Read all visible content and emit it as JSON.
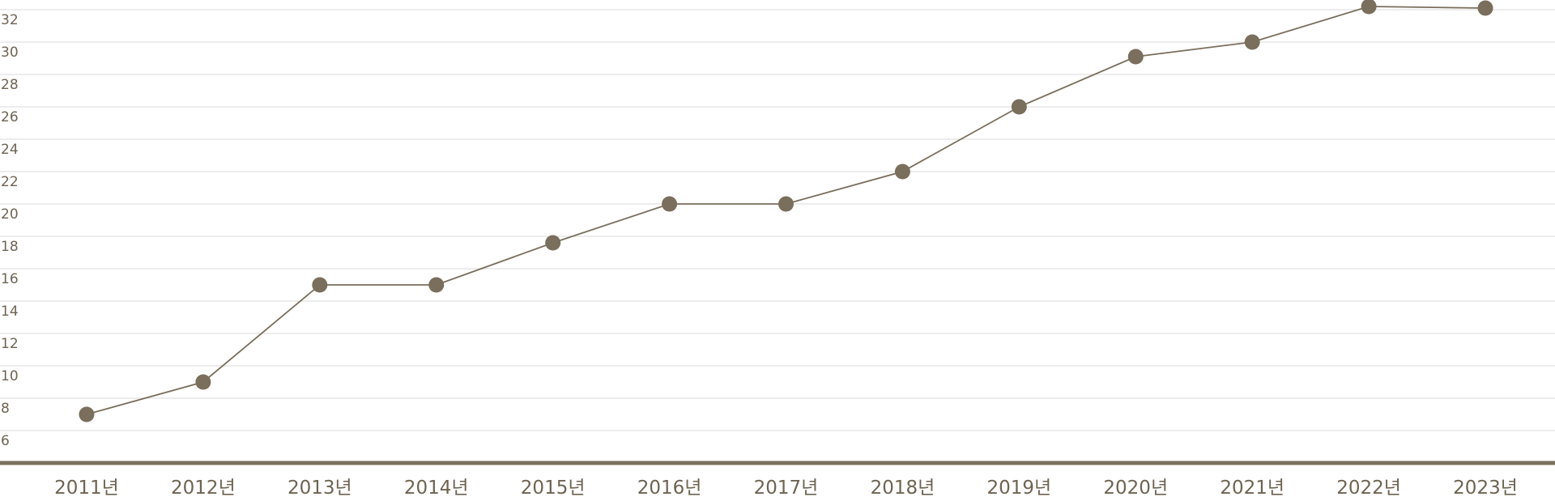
{
  "chart_data": {
    "type": "line",
    "categories": [
      "2011년",
      "2012년",
      "2013년",
      "2014년",
      "2015년",
      "2016년",
      "2017년",
      "2018년",
      "2019년",
      "2020년",
      "2021년",
      "2022년",
      "2023년"
    ],
    "values": [
      7,
      9,
      15,
      15,
      17.6,
      20,
      20,
      22,
      26,
      29.1,
      30,
      32.2,
      32.1
    ],
    "color": "#7a6e5c",
    "ylim": [
      4,
      32
    ],
    "yticks": [
      6,
      8,
      10,
      12,
      14,
      16,
      18,
      20,
      22,
      24,
      26,
      28,
      30,
      32
    ],
    "grid": true
  }
}
